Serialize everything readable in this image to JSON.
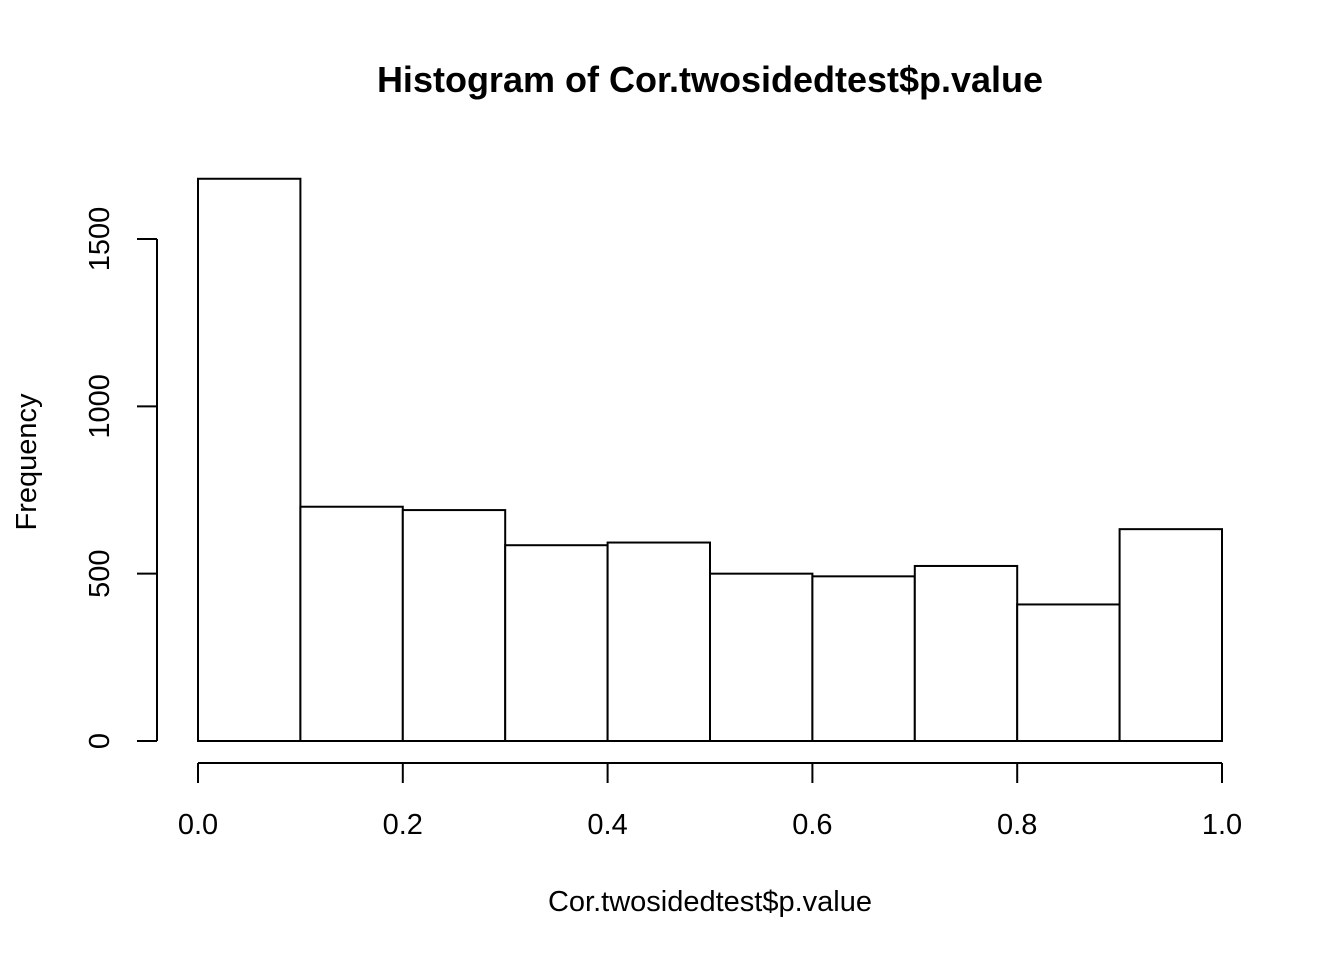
{
  "chart_data": {
    "type": "bar",
    "title": "Histogram of Cor.twosidedtest$p.value",
    "xlabel": "Cor.twosidedtest$p.value",
    "ylabel": "Frequency",
    "bins": [
      {
        "x0": 0.0,
        "x1": 0.1,
        "value": 1680
      },
      {
        "x0": 0.1,
        "x1": 0.2,
        "value": 700
      },
      {
        "x0": 0.2,
        "x1": 0.3,
        "value": 690
      },
      {
        "x0": 0.3,
        "x1": 0.4,
        "value": 585
      },
      {
        "x0": 0.4,
        "x1": 0.5,
        "value": 593
      },
      {
        "x0": 0.5,
        "x1": 0.6,
        "value": 500
      },
      {
        "x0": 0.6,
        "x1": 0.7,
        "value": 492
      },
      {
        "x0": 0.7,
        "x1": 0.8,
        "value": 523
      },
      {
        "x0": 0.8,
        "x1": 0.9,
        "value": 408
      },
      {
        "x0": 0.9,
        "x1": 1.0,
        "value": 633
      }
    ],
    "xlim": [
      0,
      1
    ],
    "ylim": [
      0,
      1680
    ],
    "x_ticks": [
      0.0,
      0.2,
      0.4,
      0.6,
      0.8,
      1.0
    ],
    "x_tick_labels": [
      "0.0",
      "0.2",
      "0.4",
      "0.6",
      "0.8",
      "1.0"
    ],
    "y_ticks": [
      0,
      500,
      1000,
      1500
    ],
    "y_tick_labels": [
      "0",
      "500",
      "1000",
      "1500"
    ],
    "grid": false,
    "legend": "none",
    "colors": {
      "bar_fill": "#ffffff",
      "bar_stroke": "#000000",
      "background": "#ffffff"
    }
  }
}
